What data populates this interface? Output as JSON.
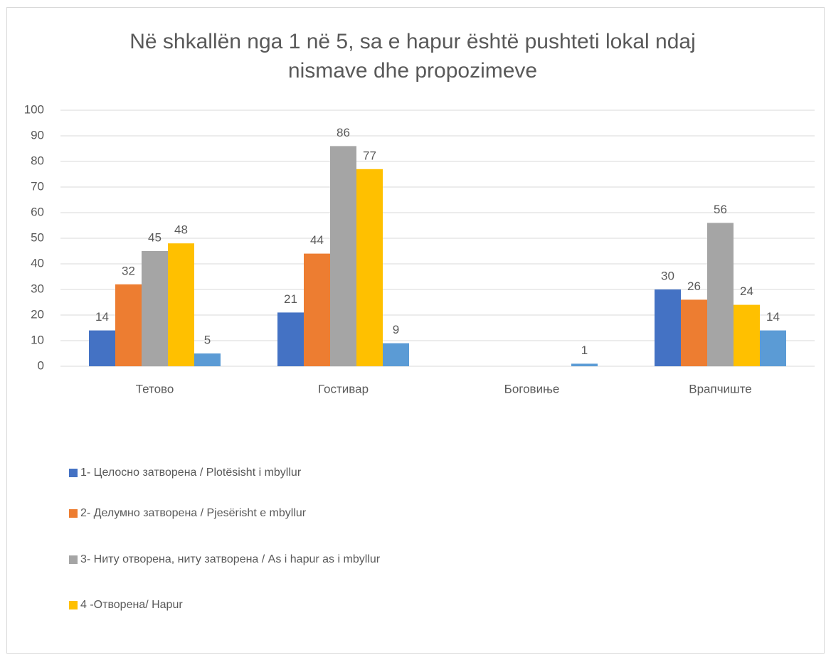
{
  "chart_data": {
    "type": "bar",
    "title": "Në shkallën nga 1 në 5, sa e hapur është pushteti lokal ndaj nismave dhe propozimeve",
    "categories": [
      "Тетово",
      "Гостивар",
      "Боговиње",
      "Врапчиште"
    ],
    "series": [
      {
        "name": "1- Целосно затворена / Plotësisht i mbyllur",
        "color": "#4472c4",
        "values": [
          14,
          21,
          null,
          30
        ]
      },
      {
        "name": "2- Делумно затворена / Pjesërisht e mbyllur",
        "color": "#ed7d31",
        "values": [
          32,
          44,
          null,
          26
        ]
      },
      {
        "name": "3- Ниту отворена, ниту затворена / As i hapur as i mbyllur",
        "color": "#a5a5a5",
        "values": [
          45,
          86,
          null,
          56
        ]
      },
      {
        "name": "4 -Отворена/ Hapur",
        "color": "#ffc000",
        "values": [
          48,
          77,
          null,
          24
        ]
      },
      {
        "color": "#5b9bd5",
        "values": [
          5,
          9,
          1,
          14
        ]
      }
    ],
    "ylim": [
      0,
      100
    ],
    "yticks": [
      0,
      10,
      20,
      30,
      40,
      50,
      60,
      70,
      80,
      90,
      100
    ],
    "grid": true,
    "legend": "bottom"
  }
}
